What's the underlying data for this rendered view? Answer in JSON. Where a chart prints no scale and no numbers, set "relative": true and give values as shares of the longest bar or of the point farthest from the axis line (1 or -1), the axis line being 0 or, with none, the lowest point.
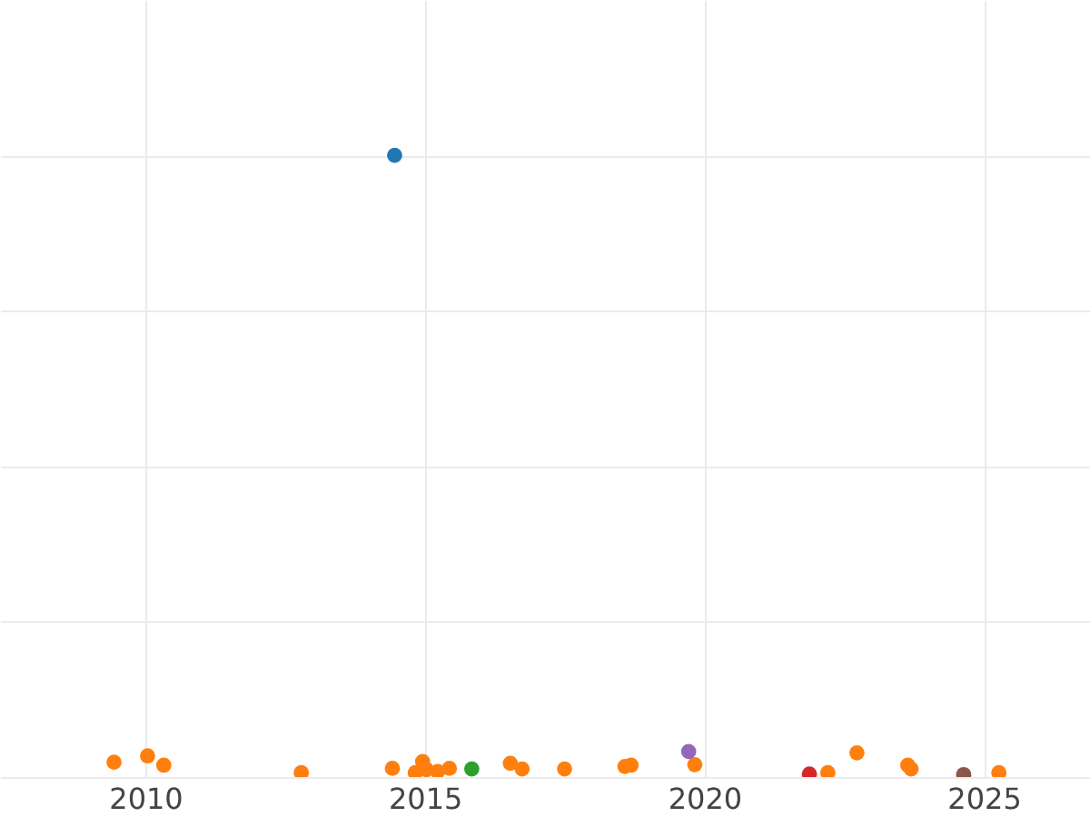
{
  "chart_data": {
    "type": "scatter",
    "relative": true,
    "grid": true,
    "marker": "circle",
    "xlim": [
      2007.4,
      2026.9
    ],
    "xticks": [
      2010,
      2015,
      2020,
      2025
    ],
    "series": [
      {
        "color": "#1f77b4",
        "x": [
          2014.46
        ],
        "values": [
          1
        ]
      },
      {
        "color": "#ff7f0e",
        "x": [
          2009.44,
          2010.04,
          2010.33,
          2012.79,
          2014.42,
          2014.96,
          2014.83,
          2015.03,
          2015.23,
          2015.44,
          2016.53,
          2016.74,
          2017.5,
          2018.58,
          2018.69,
          2019.83,
          2022.21,
          2022.73,
          2023.64,
          2023.7,
          2025.27
        ],
        "values": [
          0.024,
          0.034,
          0.019,
          0.007,
          0.014,
          0.025,
          0.007,
          0.012,
          0.009,
          0.014,
          0.022,
          0.013,
          0.013,
          0.017,
          0.019,
          0.02,
          0.007,
          0.039,
          0.019,
          0.013,
          0.007
        ]
      },
      {
        "color": "#2ca02c",
        "x": [
          2015.84
        ],
        "values": [
          0.013
        ]
      },
      {
        "color": "#d62728",
        "x": [
          2021.88
        ],
        "values": [
          0.005
        ]
      },
      {
        "color": "#9467bd",
        "x": [
          2019.72
        ],
        "values": [
          0.041
        ]
      },
      {
        "color": "#8c564b",
        "x": [
          2024.64
        ],
        "values": [
          0.004
        ]
      }
    ]
  }
}
